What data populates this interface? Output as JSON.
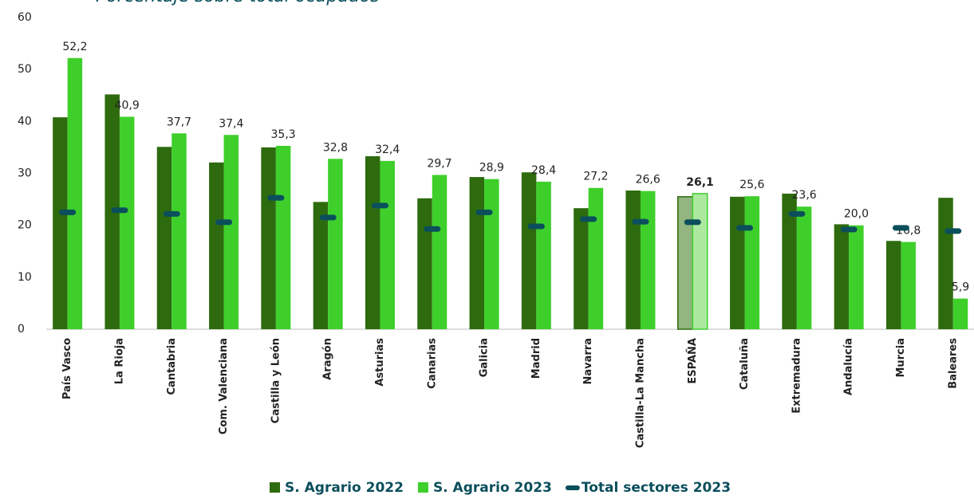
{
  "chart_data": {
    "type": "bar",
    "title": "Porcentaje sobre total ocupados",
    "categories": [
      "País Vasco",
      "La Rioja",
      "Cantabria",
      "Com. Valenciana",
      "Castilla y León",
      "Aragón",
      "Asturias",
      "Canarias",
      "Galicia",
      "Madrid",
      "Navarra",
      "Castilla-La Mancha",
      "ESPAÑA",
      "Cataluña",
      "Extremadura",
      "Andalucía",
      "Murcia",
      "Baleares"
    ],
    "series": [
      {
        "name": "S. Agrario 2022",
        "color": "#2e6b0e",
        "highlight_color": "#93b57f",
        "values": [
          40.8,
          45.2,
          35.1,
          32.1,
          35.0,
          24.5,
          33.3,
          25.2,
          29.3,
          30.2,
          23.3,
          26.7,
          25.5,
          25.5,
          26.1,
          20.2,
          17.0,
          25.3
        ]
      },
      {
        "name": "S. Agrario 2023",
        "color": "#3ecf2b",
        "highlight_color": "#ace99f",
        "values": [
          52.2,
          40.9,
          37.7,
          37.4,
          35.3,
          32.8,
          32.4,
          29.7,
          28.9,
          28.4,
          27.2,
          26.6,
          26.1,
          25.6,
          23.6,
          20.0,
          16.8,
          5.9
        ],
        "value_labels": [
          "52,2",
          "40,9",
          "37,7",
          "37,4",
          "35,3",
          "32,8",
          "32,4",
          "29,7",
          "28,9",
          "28,4",
          "27,2",
          "26,6",
          "26,1",
          "25,6",
          "23,6",
          "20,0",
          "16,8",
          "5,9"
        ]
      },
      {
        "name": "Total sectores 2023",
        "color": "#0b4f5c",
        "marker": "dash",
        "values": [
          22.5,
          22.9,
          22.2,
          20.6,
          25.3,
          21.5,
          23.8,
          19.3,
          22.5,
          19.8,
          21.2,
          20.7,
          20.6,
          19.5,
          22.2,
          19.2,
          19.5,
          18.9
        ]
      }
    ],
    "highlight_category": "ESPAÑA",
    "ylim": [
      0,
      60
    ],
    "yticks": [
      0,
      10,
      20,
      30,
      40,
      50,
      60
    ],
    "grid": false,
    "legend": "bottom"
  }
}
